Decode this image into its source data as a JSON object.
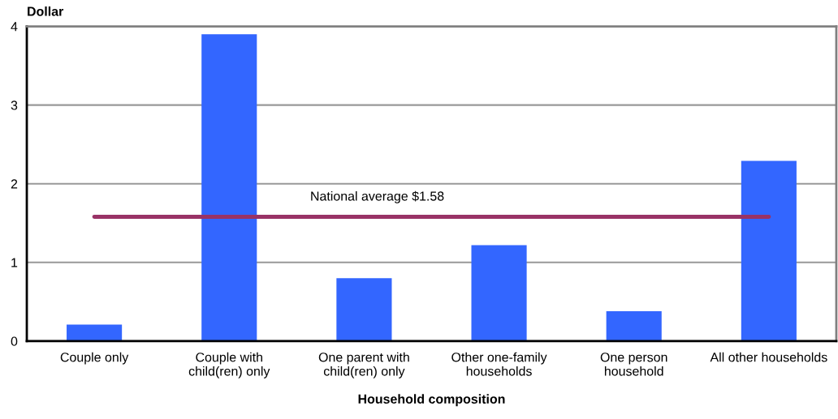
{
  "chart_data": {
    "type": "bar",
    "xlabel": "Household composition",
    "ylabel": "Dollar",
    "categories": [
      "Couple only",
      "Couple with\nchild(ren) only",
      "One parent with\nchild(ren) only",
      "Other one-family\nhouseholds",
      "One person\nhousehold",
      "All other households"
    ],
    "values": [
      0.21,
      3.9,
      0.8,
      1.22,
      0.38,
      2.29
    ],
    "color": "#3366ff",
    "ylim": [
      0,
      4
    ],
    "yticks": [
      0,
      1,
      2,
      3,
      4
    ],
    "grid": "y",
    "ref_lines": [
      {
        "axis": "y",
        "value": 1.58,
        "label": "National average $1.58",
        "color": "#993366"
      }
    ]
  }
}
